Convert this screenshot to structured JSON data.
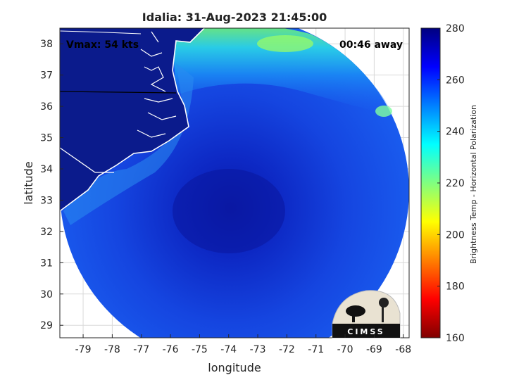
{
  "title": "Idalia: 31-Aug-2023 21:45:00",
  "annotations": {
    "vmax": "Vmax: 54 kts",
    "time_away": "00:46 away"
  },
  "axes": {
    "xlabel": "longitude",
    "ylabel": "latitude",
    "xticks": [
      "-79",
      "-78",
      "-77",
      "-76",
      "-75",
      "-74",
      "-73",
      "-72",
      "-71",
      "-70",
      "-69",
      "-68"
    ],
    "yticks": [
      "38",
      "37",
      "36",
      "35",
      "34",
      "33",
      "32",
      "31",
      "30",
      "29"
    ],
    "xlim": [
      -79.8,
      -67.8
    ],
    "ylim": [
      28.6,
      38.5
    ],
    "grid": true
  },
  "colorbar": {
    "label": "Brightness Temp - Horizontal Polarization",
    "ticks": [
      "280",
      "260",
      "240",
      "220",
      "200",
      "180",
      "160"
    ],
    "range": [
      160,
      280
    ],
    "colormap": "jet"
  },
  "logo_text": "CIMSS",
  "colors": {
    "land": "#0b1b8c",
    "coast": "#ffffff",
    "eye": "#0a1fb5",
    "swath": "#1546e6"
  }
}
